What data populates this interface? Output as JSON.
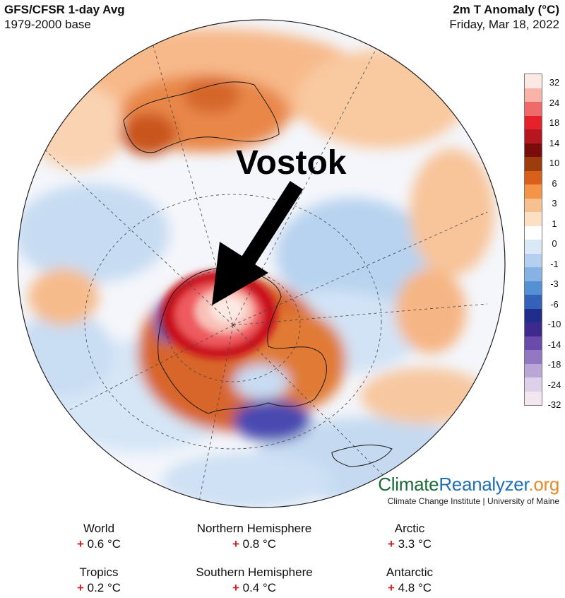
{
  "header": {
    "left_title": "GFS/CFSR 1-day Avg",
    "left_subtitle": "1979-2000 base",
    "right_title": "2m T Anomaly (°C)",
    "right_date": "Friday, Mar 18, 2022"
  },
  "annotation": {
    "label": "Vostok"
  },
  "legend": {
    "ticks": [
      "32",
      "24",
      "18",
      "14",
      "10",
      "6",
      "3",
      "1",
      "0",
      "-1",
      "-3",
      "-6",
      "-10",
      "-14",
      "-18",
      "-24",
      "-32"
    ],
    "colors": [
      "#fde9e3",
      "#f8b4a8",
      "#ef6b6b",
      "#e5222a",
      "#b51620",
      "#7a0c0c",
      "#9c3d0c",
      "#d8601a",
      "#f39448",
      "#f9c08f",
      "#fde0c4",
      "#ffffff",
      "#dbe9f7",
      "#b4d0ee",
      "#86b3e3",
      "#5690d4",
      "#3362b8",
      "#1f2e8a",
      "#3d2a8c",
      "#6a4aab",
      "#9277c3",
      "#bba6d8",
      "#ddd0ea",
      "#f4e6ee"
    ]
  },
  "branding": {
    "logo_part1": "Climate",
    "logo_part2": "Reanalyzer",
    "logo_part3": ".org",
    "subtitle": "Climate Change Institute | University of Maine"
  },
  "stats": {
    "world": {
      "label": "World",
      "sign": "+",
      "value": "0.6 °C"
    },
    "nh": {
      "label": "Northern Hemisphere",
      "sign": "+",
      "value": "0.8 °C"
    },
    "arctic": {
      "label": "Arctic",
      "sign": "+",
      "value": "3.3 °C"
    },
    "tropics": {
      "label": "Tropics",
      "sign": "+",
      "value": "0.2 °C"
    },
    "sh": {
      "label": "Southern Hemisphere",
      "sign": "+",
      "value": "0.4 °C"
    },
    "antarctic": {
      "label": "Antarctic",
      "sign": "+",
      "value": "4.8 °C"
    }
  }
}
